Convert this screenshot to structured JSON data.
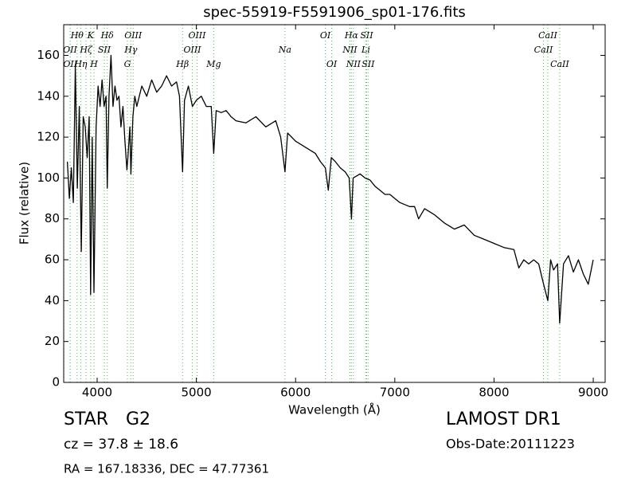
{
  "chart_data": {
    "type": "line",
    "title": "spec-55919-F5591906_sp01-176.fits",
    "x_label": "Wavelength (Å)",
    "y_label": "Flux (relative)",
    "xlim": [
      3663,
      9120
    ],
    "ylim": [
      0,
      175
    ],
    "xticks": [
      4000,
      5000,
      6000,
      7000,
      8000,
      9000
    ],
    "yticks": [
      0,
      20,
      40,
      60,
      80,
      100,
      120,
      140,
      160
    ],
    "color": "#000000",
    "line_color": "#55bb55",
    "x": [
      3700,
      3720,
      3740,
      3760,
      3780,
      3800,
      3820,
      3840,
      3860,
      3880,
      3900,
      3920,
      3934,
      3950,
      3968,
      3990,
      4010,
      4030,
      4050,
      4070,
      4090,
      4102,
      4120,
      4140,
      4160,
      4180,
      4200,
      4220,
      4240,
      4260,
      4280,
      4300,
      4310,
      4330,
      4340,
      4360,
      4380,
      4400,
      4450,
      4500,
      4550,
      4600,
      4650,
      4700,
      4750,
      4800,
      4830,
      4861,
      4880,
      4920,
      4960,
      5000,
      5050,
      5100,
      5150,
      5175,
      5200,
      5250,
      5300,
      5350,
      5400,
      5500,
      5600,
      5700,
      5800,
      5850,
      5893,
      5920,
      6000,
      6100,
      6200,
      6250,
      6300,
      6330,
      6360,
      6400,
      6450,
      6500,
      6540,
      6563,
      6580,
      6650,
      6700,
      6750,
      6800,
      6850,
      6900,
      6950,
      7000,
      7050,
      7100,
      7150,
      7200,
      7240,
      7300,
      7400,
      7500,
      7600,
      7700,
      7800,
      7900,
      8000,
      8100,
      8200,
      8250,
      8300,
      8350,
      8400,
      8450,
      8500,
      8542,
      8570,
      8600,
      8640,
      8662,
      8700,
      8750,
      8800,
      8850,
      8900,
      8950,
      9000
    ],
    "y": [
      108,
      90,
      105,
      88,
      155,
      95,
      135,
      64,
      130,
      125,
      110,
      130,
      43,
      120,
      44,
      125,
      145,
      135,
      148,
      135,
      140,
      95,
      140,
      160,
      135,
      145,
      138,
      140,
      125,
      135,
      118,
      104,
      110,
      125,
      102,
      130,
      140,
      135,
      145,
      140,
      148,
      142,
      145,
      150,
      145,
      147,
      140,
      103,
      138,
      145,
      135,
      138,
      140,
      135,
      135,
      112,
      133,
      132,
      133,
      130,
      128,
      127,
      130,
      125,
      128,
      120,
      103,
      122,
      118,
      115,
      112,
      108,
      105,
      94,
      110,
      108,
      105,
      103,
      100,
      80,
      100,
      102,
      100,
      99,
      96,
      94,
      92,
      92,
      90,
      88,
      87,
      86,
      86,
      80,
      85,
      82,
      78,
      75,
      77,
      72,
      70,
      68,
      66,
      65,
      56,
      60,
      58,
      60,
      58,
      48,
      40,
      60,
      55,
      58,
      29,
      58,
      62,
      54,
      60,
      53,
      48,
      60
    ],
    "spectral_lines": [
      [
        {
          "label": "Hθ",
          "x": 3798
        },
        {
          "label": "K",
          "x": 3934
        },
        {
          "label": "Hδ",
          "x": 4102
        },
        {
          "label": "OIII",
          "x": 4363
        },
        {
          "label": "OIII",
          "x": 5007
        },
        {
          "label": "OI",
          "x": 6300
        },
        {
          "label": "Hα",
          "x": 6563
        },
        {
          "label": "SII",
          "x": 6716
        },
        {
          "label": "CaII",
          "x": 8542
        }
      ],
      [
        {
          "label": "OII",
          "x": 3727
        },
        {
          "label": "Hζ",
          "x": 3889
        },
        {
          "label": "SII",
          "x": 4072
        },
        {
          "label": "Hγ",
          "x": 4340
        },
        {
          "label": "OIII",
          "x": 4959
        },
        {
          "label": "Na",
          "x": 5893
        },
        {
          "label": "NII",
          "x": 6548
        },
        {
          "label": "Li",
          "x": 6708
        },
        {
          "label": "CaII",
          "x": 8498
        }
      ],
      [
        {
          "label": "OII",
          "x": 3729
        },
        {
          "label": "Hη",
          "x": 3835
        },
        {
          "label": "H",
          "x": 3968
        },
        {
          "label": "G",
          "x": 4305
        },
        {
          "label": "Hβ",
          "x": 4861
        },
        {
          "label": "Mg",
          "x": 5175
        },
        {
          "label": "OI",
          "x": 6364
        },
        {
          "label": "NII",
          "x": 6583
        },
        {
          "label": "SII",
          "x": 6731
        },
        {
          "label": "CaII",
          "x": 8662
        }
      ]
    ],
    "class": "STAR",
    "subclass": "G2",
    "cz": "cz = 37.8 ± 18.6",
    "coords": "RA = 167.18336, DEC = 47.77361",
    "survey": "LAMOST DR1",
    "obs_date": "Obs-Date:20111223"
  }
}
